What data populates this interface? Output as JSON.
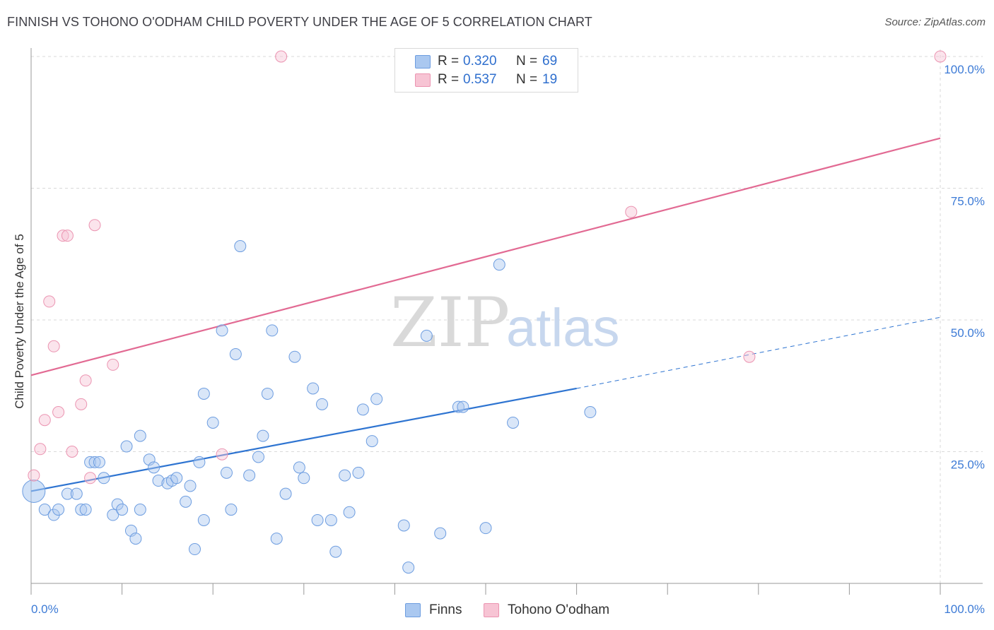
{
  "title": "FINNISH VS TOHONO O'ODHAM CHILD POVERTY UNDER THE AGE OF 5 CORRELATION CHART",
  "source": "Source: ZipAtlas.com",
  "watermark": {
    "zip": "ZIP",
    "atlas": "atlas"
  },
  "legend_top": {
    "rows": [
      {
        "r_label": "R =",
        "r_value": "0.320",
        "n_label": "N =",
        "n_value": "69"
      },
      {
        "r_label": "R =",
        "r_value": "0.537",
        "n_label": "N =",
        "n_value": "19"
      }
    ]
  },
  "legend_bottom": {
    "items": [
      "Finns",
      "Tohono O'odham"
    ]
  },
  "colors": {
    "finns_fill": "#aac8f0",
    "finns_stroke": "#6d9de0",
    "finns_line": "#2e74d1",
    "tohono_fill": "#f7c4d4",
    "tohono_stroke": "#eb94b1",
    "tohono_line": "#e26a93",
    "grid": "#d9d9d9",
    "tick_label": "#3d7bd6"
  },
  "chart_data": {
    "type": "scatter",
    "title": "FINNISH VS TOHONO O'ODHAM CHILD POVERTY UNDER THE AGE OF 5 CORRELATION CHART",
    "xlabel": "",
    "ylabel": "Child Poverty Under the Age of 5",
    "xlim": [
      0,
      100
    ],
    "ylim": [
      0,
      100
    ],
    "x_tick_labels": [
      "0.0%",
      "100.0%"
    ],
    "y_ticks": [
      25,
      50,
      75,
      100
    ],
    "y_tick_labels": [
      "25.0%",
      "50.0%",
      "75.0%",
      "100.0%"
    ],
    "grid": true,
    "legend_placement": "top-center",
    "series": [
      {
        "name": "Finns",
        "r": 0.32,
        "n": 69,
        "trend": {
          "x0": 0,
          "y0": 17.5,
          "x1": 60,
          "y1": 37,
          "dashed_to_x": 100,
          "dashed_to_y": 50.5
        },
        "points": [
          [
            0.3,
            17.5
          ],
          [
            1.5,
            14
          ],
          [
            2.5,
            13
          ],
          [
            3,
            14
          ],
          [
            4,
            17
          ],
          [
            5,
            17
          ],
          [
            5.5,
            14
          ],
          [
            6,
            14
          ],
          [
            6.5,
            23
          ],
          [
            7,
            23
          ],
          [
            7.5,
            23
          ],
          [
            8,
            20
          ],
          [
            9,
            13
          ],
          [
            9.5,
            15
          ],
          [
            10,
            14
          ],
          [
            10.5,
            26
          ],
          [
            11,
            10
          ],
          [
            11.5,
            8.5
          ],
          [
            12,
            28
          ],
          [
            13,
            23.5
          ],
          [
            13.5,
            22
          ],
          [
            14,
            19.5
          ],
          [
            15,
            19
          ],
          [
            15.5,
            19.5
          ],
          [
            16,
            20
          ],
          [
            17,
            15.5
          ],
          [
            17.5,
            18.5
          ],
          [
            18,
            6.5
          ],
          [
            18.5,
            23
          ],
          [
            19,
            36
          ],
          [
            20,
            30.5
          ],
          [
            21,
            48
          ],
          [
            21.5,
            21
          ],
          [
            22,
            14
          ],
          [
            22.5,
            43.5
          ],
          [
            24,
            20.5
          ],
          [
            25,
            24
          ],
          [
            25.5,
            28
          ],
          [
            26,
            36
          ],
          [
            26.5,
            48
          ],
          [
            27,
            8.5
          ],
          [
            28,
            17
          ],
          [
            29,
            43
          ],
          [
            29.5,
            22
          ],
          [
            30,
            20
          ],
          [
            31,
            37
          ],
          [
            31.5,
            12
          ],
          [
            32,
            34
          ],
          [
            33,
            12
          ],
          [
            33.5,
            6
          ],
          [
            34.5,
            20.5
          ],
          [
            35,
            13.5
          ],
          [
            36,
            21
          ],
          [
            36.5,
            33
          ],
          [
            37.5,
            27
          ],
          [
            38,
            35
          ],
          [
            41,
            11
          ],
          [
            41.5,
            3
          ],
          [
            43.5,
            47
          ],
          [
            45,
            9.5
          ],
          [
            47,
            33.5
          ],
          [
            47.5,
            33.5
          ],
          [
            50,
            10.5
          ],
          [
            51.5,
            60.5
          ],
          [
            53,
            30.5
          ],
          [
            23,
            64
          ],
          [
            19,
            12
          ],
          [
            61.5,
            32.5
          ],
          [
            12,
            14
          ]
        ]
      },
      {
        "name": "Tohono O'odham",
        "r": 0.537,
        "n": 19,
        "trend": {
          "x0": 0,
          "y0": 39.5,
          "x1": 100,
          "y1": 84.5
        },
        "points": [
          [
            0.3,
            20.5
          ],
          [
            1,
            25.5
          ],
          [
            1.5,
            31
          ],
          [
            2,
            53.5
          ],
          [
            2.5,
            45
          ],
          [
            3,
            32.5
          ],
          [
            3.5,
            66
          ],
          [
            4,
            66
          ],
          [
            4.5,
            25
          ],
          [
            5.5,
            34
          ],
          [
            6,
            38.5
          ],
          [
            6.5,
            20
          ],
          [
            7,
            68
          ],
          [
            9,
            41.5
          ],
          [
            21,
            24.5
          ],
          [
            27.5,
            100
          ],
          [
            66,
            70.5
          ],
          [
            79,
            43
          ],
          [
            100,
            100
          ]
        ]
      }
    ]
  }
}
